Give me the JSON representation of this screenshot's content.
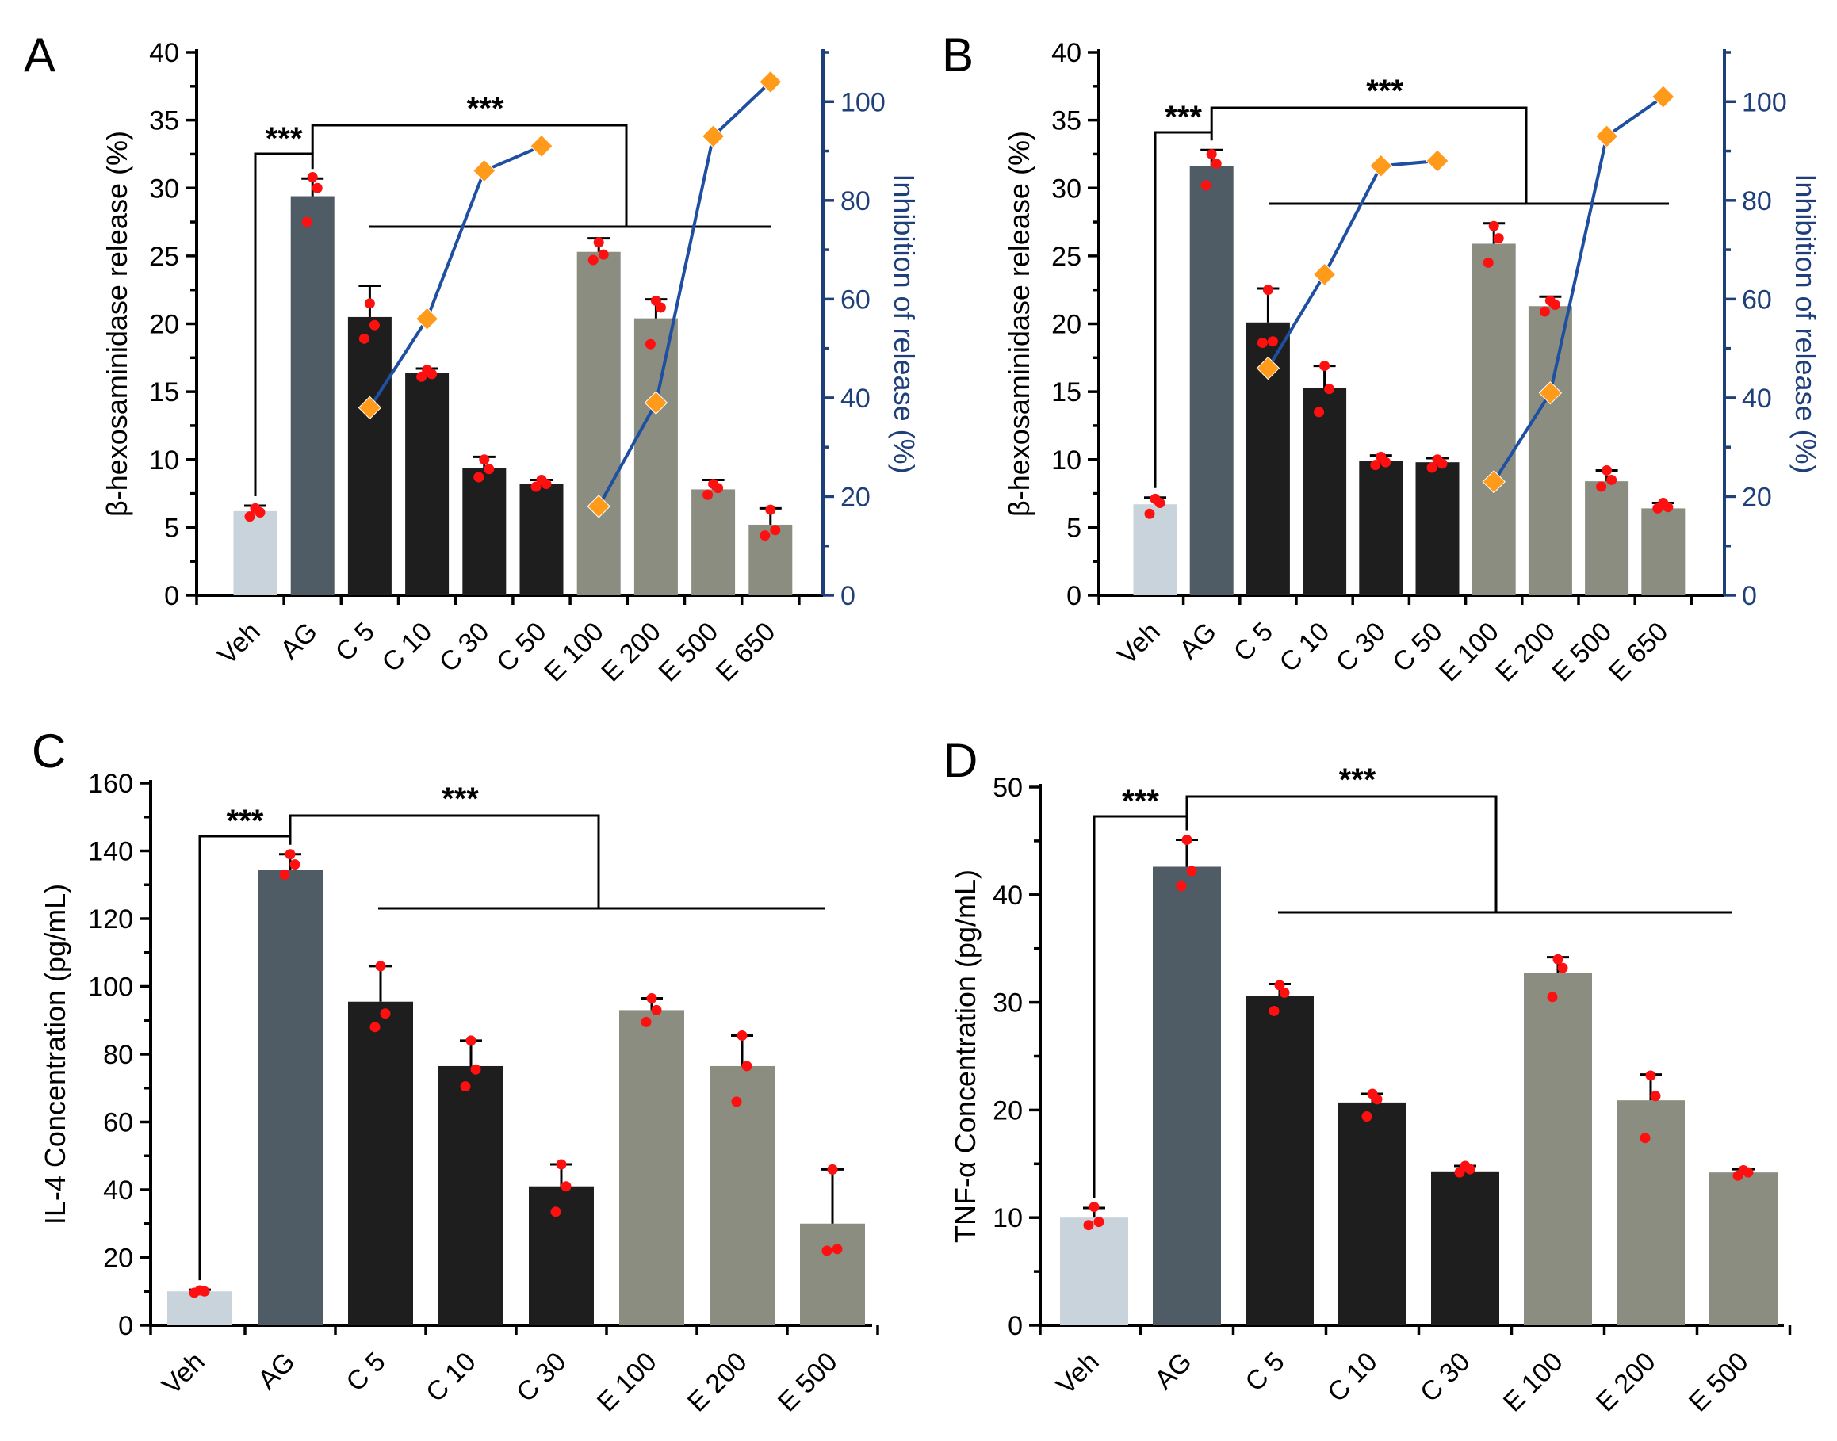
{
  "colors": {
    "vehicle": "#c8d3dc",
    "ag": "#4f5c66",
    "c_group": "#1e1e1e",
    "e_group": "#8a8d80",
    "points": "#ff1010",
    "inhibition_line": "#1f4fa0",
    "inhibition_marker": "#ff9a1a",
    "right_axis": "#1f3f7a"
  },
  "chart_data": [
    {
      "panel": "A",
      "type": "bar",
      "ylabel": "β-hexosaminidase release (%)",
      "ylim": [
        0,
        40
      ],
      "yticks": [
        0,
        5,
        10,
        15,
        20,
        25,
        30,
        35,
        40
      ],
      "y2label": "Inhibition of release (%)",
      "y2lim": [
        0,
        110
      ],
      "y2ticks": [
        0,
        20,
        40,
        60,
        80,
        100
      ],
      "categories": [
        "Veh",
        "AG",
        "C 5",
        "C 10",
        "C 30",
        "C 50",
        "E 100",
        "E 200",
        "E 500",
        "E 650"
      ],
      "groups": [
        "vehicle",
        "ag",
        "c_group",
        "c_group",
        "c_group",
        "c_group",
        "e_group",
        "e_group",
        "e_group",
        "e_group"
      ],
      "values": [
        6.2,
        29.4,
        20.5,
        16.4,
        9.4,
        8.2,
        25.3,
        20.4,
        7.8,
        5.2
      ],
      "errors": [
        0.4,
        1.3,
        2.3,
        0.3,
        0.8,
        0.3,
        1.0,
        1.4,
        0.7,
        1.2
      ],
      "points": [
        [
          5.8,
          6.1,
          6.4
        ],
        [
          27.5,
          30.0,
          30.8
        ],
        [
          18.9,
          19.9,
          21.5
        ],
        [
          16.1,
          16.3,
          16.6
        ],
        [
          8.7,
          9.3,
          10.0
        ],
        [
          8.0,
          8.2,
          8.5
        ],
        [
          24.7,
          25.1,
          26.0
        ],
        [
          18.5,
          21.2,
          21.7
        ],
        [
          7.4,
          7.9,
          8.2
        ],
        [
          4.4,
          4.8,
          6.3
        ]
      ],
      "inhibition_series": [
        {
          "x": [
            "C 5",
            "C 10",
            "C 30",
            "C 50"
          ],
          "values": [
            38,
            56,
            86,
            91
          ]
        },
        {
          "x": [
            "E 100",
            "E 200",
            "E 500",
            "E 650"
          ],
          "values": [
            18,
            39,
            93,
            104
          ]
        }
      ],
      "significance": [
        {
          "label": "***",
          "from": "Veh",
          "to": "AG"
        },
        {
          "label": "***",
          "from": "AG",
          "to": [
            "C 5",
            "C 10",
            "C 30",
            "C 50",
            "E 100",
            "E 200",
            "E 500",
            "E 650"
          ]
        }
      ]
    },
    {
      "panel": "B",
      "type": "bar",
      "ylabel": "β-hexosaminidase release (%)",
      "ylim": [
        0,
        40
      ],
      "yticks": [
        0,
        5,
        10,
        15,
        20,
        25,
        30,
        35,
        40
      ],
      "y2label": "Inhibition of release (%)",
      "y2lim": [
        0,
        110
      ],
      "y2ticks": [
        0,
        20,
        40,
        60,
        80,
        100
      ],
      "categories": [
        "Veh",
        "AG",
        "C 5",
        "C 10",
        "C 30",
        "C 50",
        "E 100",
        "E 200",
        "E 500",
        "E 650"
      ],
      "groups": [
        "vehicle",
        "ag",
        "c_group",
        "c_group",
        "c_group",
        "c_group",
        "e_group",
        "e_group",
        "e_group",
        "e_group"
      ],
      "values": [
        6.7,
        31.6,
        20.1,
        15.3,
        9.9,
        9.8,
        25.9,
        21.3,
        8.4,
        6.4
      ],
      "errors": [
        0.5,
        1.2,
        2.5,
        1.6,
        0.4,
        0.3,
        1.5,
        0.7,
        0.8,
        0.4
      ],
      "points": [
        [
          6.0,
          6.8,
          7.1
        ],
        [
          30.2,
          31.8,
          32.5
        ],
        [
          18.6,
          18.7,
          22.5
        ],
        [
          13.5,
          15.2,
          16.9
        ],
        [
          9.6,
          9.8,
          10.2
        ],
        [
          9.4,
          9.7,
          10.0
        ],
        [
          24.5,
          26.3,
          27.2
        ],
        [
          20.9,
          21.4,
          21.7
        ],
        [
          8.0,
          8.5,
          9.2
        ],
        [
          6.4,
          6.5,
          6.8
        ]
      ],
      "inhibition_series": [
        {
          "x": [
            "C 5",
            "C 10",
            "C 30",
            "C 50"
          ],
          "values": [
            46,
            65,
            87,
            88
          ]
        },
        {
          "x": [
            "E 100",
            "E 200",
            "E 500",
            "E 650"
          ],
          "values": [
            23,
            41,
            93,
            101
          ]
        }
      ],
      "significance": [
        {
          "label": "***",
          "from": "Veh",
          "to": "AG"
        },
        {
          "label": "***",
          "from": "AG",
          "to": [
            "C 5",
            "C 10",
            "C 30",
            "C 50",
            "E 100",
            "E 200",
            "E 500",
            "E 650"
          ]
        }
      ]
    },
    {
      "panel": "C",
      "type": "bar",
      "ylabel": "IL-4 Concentration (pg/mL)",
      "ylim": [
        0,
        160
      ],
      "yticks": [
        0,
        20,
        40,
        60,
        80,
        100,
        120,
        140,
        160
      ],
      "categories": [
        "Veh",
        "AG",
        "C 5",
        "C 10",
        "C 30",
        "E 100",
        "E 200",
        "E 500"
      ],
      "groups": [
        "vehicle",
        "ag",
        "c_group",
        "c_group",
        "c_group",
        "e_group",
        "e_group",
        "e_group"
      ],
      "values": [
        10,
        134.5,
        95.5,
        76.5,
        41,
        93,
        76.5,
        30
      ],
      "errors": [
        0.5,
        4.5,
        10.5,
        7.5,
        6.5,
        3.5,
        9.0,
        16.0
      ],
      "points": [
        [
          9.6,
          10.0,
          10.3
        ],
        [
          133.0,
          136.0,
          139.0
        ],
        [
          88.0,
          92.0,
          106.0
        ],
        [
          70.5,
          75.5,
          84.0
        ],
        [
          33.5,
          41.0,
          47.5
        ],
        [
          89.5,
          93.0,
          96.5
        ],
        [
          66.0,
          76.5,
          85.5
        ],
        [
          22.0,
          22.5,
          46.0
        ]
      ],
      "significance": [
        {
          "label": "***",
          "from": "Veh",
          "to": "AG"
        },
        {
          "label": "***",
          "from": "AG",
          "to": [
            "C 5",
            "C 10",
            "C 30",
            "E 100",
            "E 200",
            "E 500"
          ]
        }
      ]
    },
    {
      "panel": "D",
      "type": "bar",
      "ylabel": "TNF-α Concentration (pg/mL)",
      "ylim": [
        0,
        50
      ],
      "yticks": [
        0,
        10,
        20,
        30,
        40,
        50
      ],
      "categories": [
        "Veh",
        "AG",
        "C 5",
        "C 10",
        "C 30",
        "E 100",
        "E 200",
        "E 500"
      ],
      "groups": [
        "vehicle",
        "ag",
        "c_group",
        "c_group",
        "c_group",
        "e_group",
        "e_group",
        "e_group"
      ],
      "values": [
        10.0,
        42.6,
        30.6,
        20.7,
        14.3,
        32.7,
        20.9,
        14.2
      ],
      "errors": [
        0.9,
        2.5,
        1.1,
        0.8,
        0.5,
        1.5,
        2.4,
        0.3
      ],
      "points": [
        [
          9.3,
          9.6,
          11.0
        ],
        [
          40.8,
          42.2,
          45.1
        ],
        [
          29.2,
          30.9,
          31.6
        ],
        [
          19.4,
          21.0,
          21.5
        ],
        [
          14.2,
          14.5,
          14.8
        ],
        [
          30.5,
          33.2,
          34.0
        ],
        [
          17.4,
          21.3,
          23.2
        ],
        [
          13.9,
          14.2,
          14.4
        ]
      ],
      "significance": [
        {
          "label": "***",
          "from": "Veh",
          "to": "AG"
        },
        {
          "label": "***",
          "from": "AG",
          "to": [
            "C 5",
            "C 10",
            "C 30",
            "E 100",
            "E 200",
            "E 500"
          ]
        }
      ]
    }
  ]
}
